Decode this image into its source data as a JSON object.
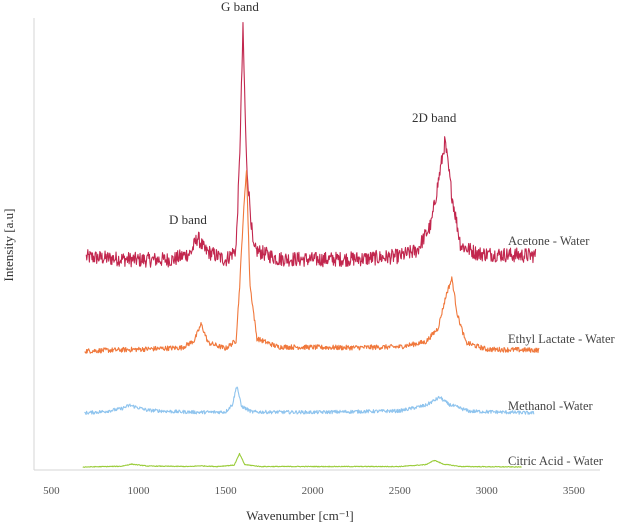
{
  "chart_data": {
    "type": "line",
    "title": "",
    "xlabel": "Wavenumber [cm⁻¹]",
    "ylabel": "Intensity [a.u]",
    "xlim": [
      400,
      3650
    ],
    "xticks": [
      500,
      1000,
      1500,
      2000,
      2500,
      3000,
      3500
    ],
    "grid": false,
    "legend": "none",
    "series": [
      {
        "name": "Acetone - Water",
        "color": "#c2274e",
        "noise": 0.18,
        "values": [
          [
            700,
            0.12
          ],
          [
            1000,
            0.05
          ],
          [
            1200,
            0.06
          ],
          [
            1300,
            0.22
          ],
          [
            1340,
            0.6
          ],
          [
            1380,
            0.28
          ],
          [
            1500,
            0.05
          ],
          [
            1560,
            0.3
          ],
          [
            1580,
            2.4
          ],
          [
            1600,
            5.6
          ],
          [
            1620,
            2.4
          ],
          [
            1660,
            0.3
          ],
          [
            1800,
            0.08
          ],
          [
            2000,
            0.06
          ],
          [
            2300,
            0.08
          ],
          [
            2500,
            0.14
          ],
          [
            2600,
            0.28
          ],
          [
            2680,
            0.9
          ],
          [
            2720,
            1.9
          ],
          [
            2760,
            2.9
          ],
          [
            2800,
            1.6
          ],
          [
            2850,
            0.4
          ],
          [
            2950,
            0.2
          ],
          [
            3200,
            0.16
          ],
          [
            3280,
            0.16
          ]
        ]
      },
      {
        "name": "Ethyl Lactate - Water",
        "color": "#f0783c",
        "noise": 0.06,
        "values": [
          [
            690,
            0.0
          ],
          [
            1000,
            0.04
          ],
          [
            1250,
            0.08
          ],
          [
            1320,
            0.25
          ],
          [
            1360,
            0.65
          ],
          [
            1400,
            0.2
          ],
          [
            1500,
            0.06
          ],
          [
            1560,
            0.25
          ],
          [
            1580,
            1.5
          ],
          [
            1600,
            3.1
          ],
          [
            1620,
            4.4
          ],
          [
            1640,
            1.6
          ],
          [
            1680,
            0.3
          ],
          [
            1800,
            0.1
          ],
          [
            2200,
            0.08
          ],
          [
            2500,
            0.1
          ],
          [
            2650,
            0.22
          ],
          [
            2720,
            0.55
          ],
          [
            2770,
            1.4
          ],
          [
            2800,
            1.75
          ],
          [
            2830,
            0.9
          ],
          [
            2880,
            0.2
          ],
          [
            3000,
            0.04
          ],
          [
            3300,
            0.02
          ]
        ]
      },
      {
        "name": "Methanol -Water",
        "color": "#8fc4ee",
        "noise": 0.05,
        "values": [
          [
            690,
            0.0
          ],
          [
            800,
            0.04
          ],
          [
            900,
            0.12
          ],
          [
            950,
            0.22
          ],
          [
            1050,
            0.08
          ],
          [
            1200,
            0.04
          ],
          [
            1350,
            0.02
          ],
          [
            1500,
            0.03
          ],
          [
            1540,
            0.25
          ],
          [
            1565,
            0.8
          ],
          [
            1590,
            0.2
          ],
          [
            1650,
            0.03
          ],
          [
            2000,
            0.02
          ],
          [
            2500,
            0.06
          ],
          [
            2650,
            0.22
          ],
          [
            2730,
            0.45
          ],
          [
            2780,
            0.25
          ],
          [
            2900,
            0.05
          ],
          [
            3270,
            0.0
          ]
        ]
      },
      {
        "name": "Citric Acid - Water",
        "color": "#9acc3a",
        "noise": 0.015,
        "values": [
          [
            680,
            0.0
          ],
          [
            900,
            0.03
          ],
          [
            960,
            0.12
          ],
          [
            1050,
            0.04
          ],
          [
            1300,
            0.02
          ],
          [
            1350,
            0.05
          ],
          [
            1450,
            0.02
          ],
          [
            1550,
            0.08
          ],
          [
            1580,
            0.55
          ],
          [
            1610,
            0.1
          ],
          [
            1700,
            0.02
          ],
          [
            2500,
            0.02
          ],
          [
            2650,
            0.1
          ],
          [
            2700,
            0.28
          ],
          [
            2750,
            0.12
          ],
          [
            2850,
            0.02
          ],
          [
            3200,
            0.0
          ]
        ]
      }
    ],
    "annotations": [
      {
        "text": "G band",
        "x": 1600
      },
      {
        "text": "D band",
        "x": 1350
      },
      {
        "text": "2D band",
        "x": 2770
      }
    ]
  }
}
